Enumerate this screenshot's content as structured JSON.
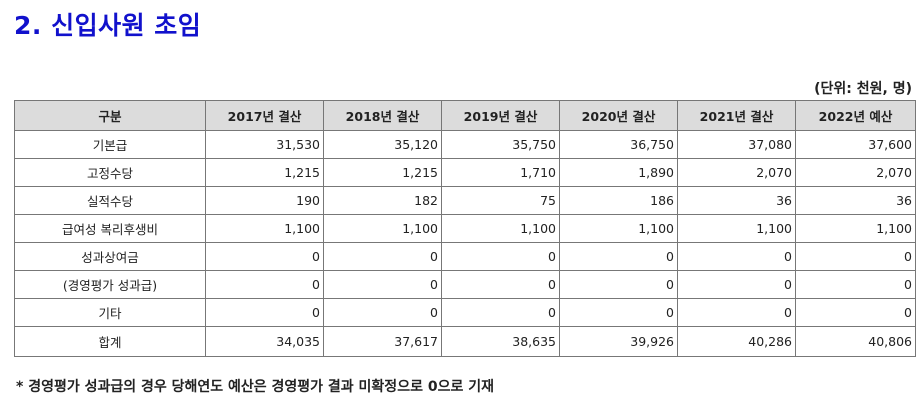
{
  "title": "2. 신입사원 초임",
  "unit_note": "(단위: 천원, 명)",
  "table": {
    "headers": [
      "구분",
      "2017년 결산",
      "2018년 결산",
      "2019년 결산",
      "2020년 결산",
      "2021년 결산",
      "2022년 예산"
    ],
    "rows": [
      {
        "label": "기본급",
        "values": [
          "31,530",
          "35,120",
          "35,750",
          "36,750",
          "37,080",
          "37,600"
        ]
      },
      {
        "label": "고정수당",
        "values": [
          "1,215",
          "1,215",
          "1,710",
          "1,890",
          "2,070",
          "2,070"
        ]
      },
      {
        "label": "실적수당",
        "values": [
          "190",
          "182",
          "75",
          "186",
          "36",
          "36"
        ]
      },
      {
        "label": "급여성 복리후생비",
        "values": [
          "1,100",
          "1,100",
          "1,100",
          "1,100",
          "1,100",
          "1,100"
        ]
      },
      {
        "label": "성과상여금",
        "values": [
          "0",
          "0",
          "0",
          "0",
          "0",
          "0"
        ]
      },
      {
        "label": "(경영평가 성과급)",
        "values": [
          "0",
          "0",
          "0",
          "0",
          "0",
          "0"
        ]
      },
      {
        "label": "기타",
        "values": [
          "0",
          "0",
          "0",
          "0",
          "0",
          "0"
        ]
      },
      {
        "label": "합계",
        "values": [
          "34,035",
          "37,617",
          "38,635",
          "39,926",
          "40,286",
          "40,806"
        ]
      }
    ]
  },
  "footnote": "* 경영평가 성과급의 경우 당해연도 예산은 경영평가 결과 미확정으로 0으로 기재"
}
